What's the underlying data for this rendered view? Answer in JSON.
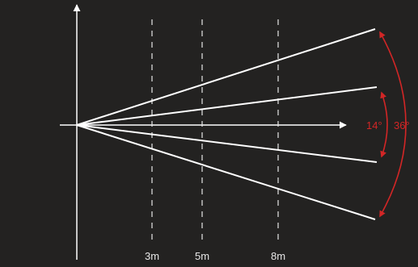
{
  "diagram": {
    "background": "#232221",
    "line_color": "#ffffff",
    "accent_color": "#d22626",
    "distance_markers": [
      {
        "label": "3m"
      },
      {
        "label": "5m"
      },
      {
        "label": "8m"
      }
    ],
    "angles": [
      {
        "label": "14°"
      },
      {
        "label": "36°"
      }
    ]
  }
}
